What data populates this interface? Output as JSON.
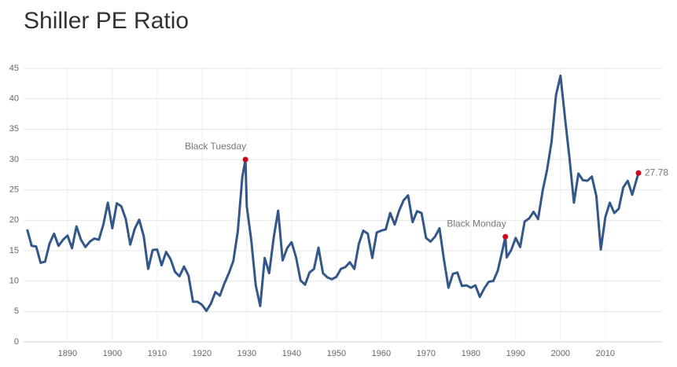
{
  "chart_data": {
    "type": "line",
    "title": "Shiller PE Ratio",
    "x": [
      1881,
      1882,
      1883,
      1884,
      1885,
      1886,
      1887,
      1888,
      1889,
      1890,
      1891,
      1892,
      1893,
      1894,
      1895,
      1896,
      1897,
      1898,
      1899,
      1900,
      1901,
      1902,
      1903,
      1904,
      1905,
      1906,
      1907,
      1908,
      1909,
      1910,
      1911,
      1912,
      1913,
      1914,
      1915,
      1916,
      1917,
      1918,
      1919,
      1920,
      1921,
      1922,
      1923,
      1924,
      1925,
      1926,
      1927,
      1928,
      1929,
      1929.7,
      1930,
      1931,
      1932,
      1933,
      1934,
      1935,
      1936,
      1937,
      1938,
      1939,
      1940,
      1941,
      1942,
      1943,
      1944,
      1945,
      1946,
      1947,
      1948,
      1949,
      1950,
      1951,
      1952,
      1953,
      1954,
      1955,
      1956,
      1957,
      1958,
      1959,
      1960,
      1961,
      1962,
      1963,
      1964,
      1965,
      1966,
      1967,
      1968,
      1969,
      1970,
      1971,
      1972,
      1973,
      1974,
      1975,
      1976,
      1977,
      1978,
      1979,
      1980,
      1981,
      1982,
      1983,
      1984,
      1985,
      1986,
      1987,
      1987.7,
      1988,
      1989,
      1990,
      1991,
      1992,
      1993,
      1994,
      1995,
      1996,
      1997,
      1998,
      1999,
      2000,
      2001,
      2002,
      2003,
      2004,
      2005,
      2006,
      2007,
      2008,
      2009,
      2010,
      2011,
      2012,
      2013,
      2014,
      2015,
      2016,
      2017.4
    ],
    "series": [
      {
        "name": "Shiller PE Ratio",
        "color": "#34578a",
        "values": [
          18.5,
          15.8,
          15.7,
          13.0,
          13.2,
          16.2,
          17.8,
          15.8,
          16.8,
          17.5,
          15.4,
          19.0,
          16.8,
          15.6,
          16.5,
          17.0,
          16.8,
          19.3,
          22.9,
          18.7,
          22.8,
          22.3,
          20.2,
          16.0,
          18.6,
          20.1,
          17.4,
          12.0,
          15.1,
          15.2,
          12.6,
          14.8,
          13.6,
          11.5,
          10.8,
          12.4,
          10.9,
          6.6,
          6.6,
          6.1,
          5.1,
          6.3,
          8.2,
          7.6,
          9.6,
          11.3,
          13.3,
          18.2,
          27.1,
          30.0,
          22.3,
          16.7,
          9.3,
          5.9,
          13.8,
          11.3,
          17.1,
          21.6,
          13.4,
          15.4,
          16.4,
          13.9,
          10.1,
          9.4,
          11.4,
          12.0,
          15.5,
          11.3,
          10.6,
          10.3,
          10.7,
          12.0,
          12.3,
          13.1,
          12.0,
          16.1,
          18.3,
          17.8,
          13.8,
          18.0,
          18.3,
          18.5,
          21.2,
          19.3,
          21.6,
          23.3,
          24.1,
          19.7,
          21.5,
          21.2,
          17.1,
          16.5,
          17.3,
          18.7,
          13.5,
          8.9,
          11.2,
          11.4,
          9.2,
          9.3,
          8.9,
          9.3,
          7.4,
          8.8,
          9.9,
          10.0,
          11.7,
          14.9,
          17.3,
          13.9,
          15.1,
          17.1,
          15.6,
          19.8,
          20.3,
          21.4,
          20.2,
          24.8,
          28.3,
          32.9,
          40.6,
          43.8,
          36.9,
          30.3,
          22.9,
          27.7,
          26.6,
          26.5,
          27.2,
          24.0,
          15.2,
          20.5,
          22.9,
          21.2,
          21.9,
          25.4,
          26.5,
          24.2,
          27.78
        ]
      }
    ],
    "annotations": [
      {
        "label": "Black Tuesday",
        "x": 1929.7,
        "y": 30.0,
        "position": "above-left"
      },
      {
        "label": "Black Monday",
        "x": 1987.7,
        "y": 17.3,
        "position": "above-left"
      },
      {
        "label": "27.78",
        "x": 2017.4,
        "y": 27.78,
        "position": "right"
      }
    ],
    "marker_color": "#d0021b",
    "xlim": [
      1880.2,
      2017.4
    ],
    "xticks": [
      1890,
      1900,
      1910,
      1920,
      1930,
      1940,
      1950,
      1960,
      1970,
      1980,
      1990,
      2000,
      2010
    ],
    "ylim": [
      0,
      45
    ],
    "yticks": [
      0,
      5,
      10,
      15,
      20,
      25,
      30,
      35,
      40,
      45
    ],
    "grid": true
  }
}
